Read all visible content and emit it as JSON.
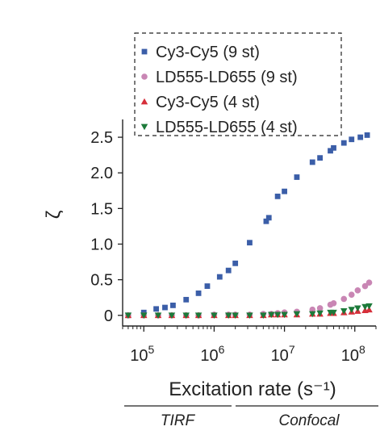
{
  "chart_data": {
    "type": "scatter",
    "title": "",
    "xlabel": "Excitation rate (s⁻¹)",
    "ylabel": "ζ",
    "xscale": "log",
    "xlim": [
      50000,
      200000000
    ],
    "ylim": [
      -0.15,
      2.75
    ],
    "x_ticks": [
      100000,
      1000000,
      10000000,
      100000000
    ],
    "x_tick_labels": [
      {
        "base": "10",
        "exp": "5"
      },
      {
        "base": "10",
        "exp": "6"
      },
      {
        "base": "10",
        "exp": "7"
      },
      {
        "base": "10",
        "exp": "8"
      }
    ],
    "y_ticks": [
      0,
      0.5,
      1.0,
      1.5,
      2.0,
      2.5
    ],
    "y_tick_labels": [
      "0",
      "0.5",
      "1.0",
      "1.5",
      "2.0",
      "2.5"
    ],
    "legend_position": "top",
    "grid": false,
    "regions": [
      {
        "label": "TIRF",
        "x_range": [
          50000,
          2000000
        ]
      },
      {
        "label": "Confocal",
        "x_range": [
          2000000,
          200000000
        ]
      }
    ],
    "series": [
      {
        "name": "Cy3-Cy5 (9 st)",
        "marker": "square",
        "color": "#3b5ea8",
        "x": [
          60000,
          100000,
          150000,
          200000,
          260000,
          400000,
          600000,
          800000,
          1200000,
          1600000,
          2000000,
          3200000,
          5500000,
          6000000,
          8000000,
          10000000,
          15000000,
          25000000,
          32000000,
          45000000,
          50000000,
          70000000,
          90000000,
          120000000,
          150000000
        ],
        "y": [
          0.0,
          0.04,
          0.09,
          0.11,
          0.14,
          0.22,
          0.31,
          0.41,
          0.54,
          0.63,
          0.73,
          1.02,
          1.32,
          1.37,
          1.67,
          1.74,
          1.94,
          2.15,
          2.21,
          2.31,
          2.35,
          2.42,
          2.47,
          2.5,
          2.53
        ]
      },
      {
        "name": "LD555-LD655 (9 st)",
        "marker": "circle",
        "color": "#c986b4",
        "x": [
          60000,
          100000,
          160000,
          250000,
          400000,
          600000,
          1000000,
          1600000,
          2000000,
          3200000,
          5000000,
          6500000,
          8000000,
          10000000,
          15000000,
          25000000,
          32000000,
          45000000,
          50000000,
          70000000,
          90000000,
          110000000,
          140000000,
          160000000
        ],
        "y": [
          0.0,
          0.0,
          0.0,
          0.0,
          0.0,
          0.0,
          0.01,
          0.01,
          0.01,
          0.01,
          0.02,
          0.02,
          0.03,
          0.04,
          0.05,
          0.08,
          0.1,
          0.15,
          0.17,
          0.23,
          0.29,
          0.35,
          0.41,
          0.46
        ]
      },
      {
        "name": "Cy3-Cy5 (4 st)",
        "marker": "triangle-up",
        "color": "#d62f3a",
        "x": [
          60000,
          100000,
          160000,
          250000,
          400000,
          600000,
          1000000,
          1600000,
          2000000,
          3200000,
          5000000,
          6500000,
          8000000,
          10000000,
          15000000,
          25000000,
          32000000,
          45000000,
          50000000,
          70000000,
          90000000,
          110000000,
          140000000,
          160000000
        ],
        "y": [
          0.0,
          0.0,
          0.0,
          0.0,
          0.0,
          0.0,
          0.0,
          0.0,
          0.0,
          0.0,
          0.0,
          0.01,
          0.01,
          0.01,
          0.01,
          0.02,
          0.02,
          0.03,
          0.03,
          0.04,
          0.05,
          0.06,
          0.07,
          0.08
        ]
      },
      {
        "name": "LD555-LD655 (4 st)",
        "marker": "triangle-down",
        "color": "#1c7a3a",
        "x": [
          60000,
          100000,
          160000,
          250000,
          400000,
          600000,
          1000000,
          1600000,
          2000000,
          3200000,
          5000000,
          6500000,
          8000000,
          10000000,
          15000000,
          25000000,
          32000000,
          45000000,
          50000000,
          70000000,
          90000000,
          110000000,
          140000000,
          160000000
        ],
        "y": [
          0.0,
          0.0,
          0.0,
          0.0,
          0.0,
          0.0,
          0.0,
          0.0,
          0.0,
          0.0,
          0.0,
          0.01,
          0.01,
          0.01,
          0.02,
          0.02,
          0.03,
          0.04,
          0.04,
          0.06,
          0.08,
          0.1,
          0.12,
          0.13
        ]
      }
    ]
  }
}
